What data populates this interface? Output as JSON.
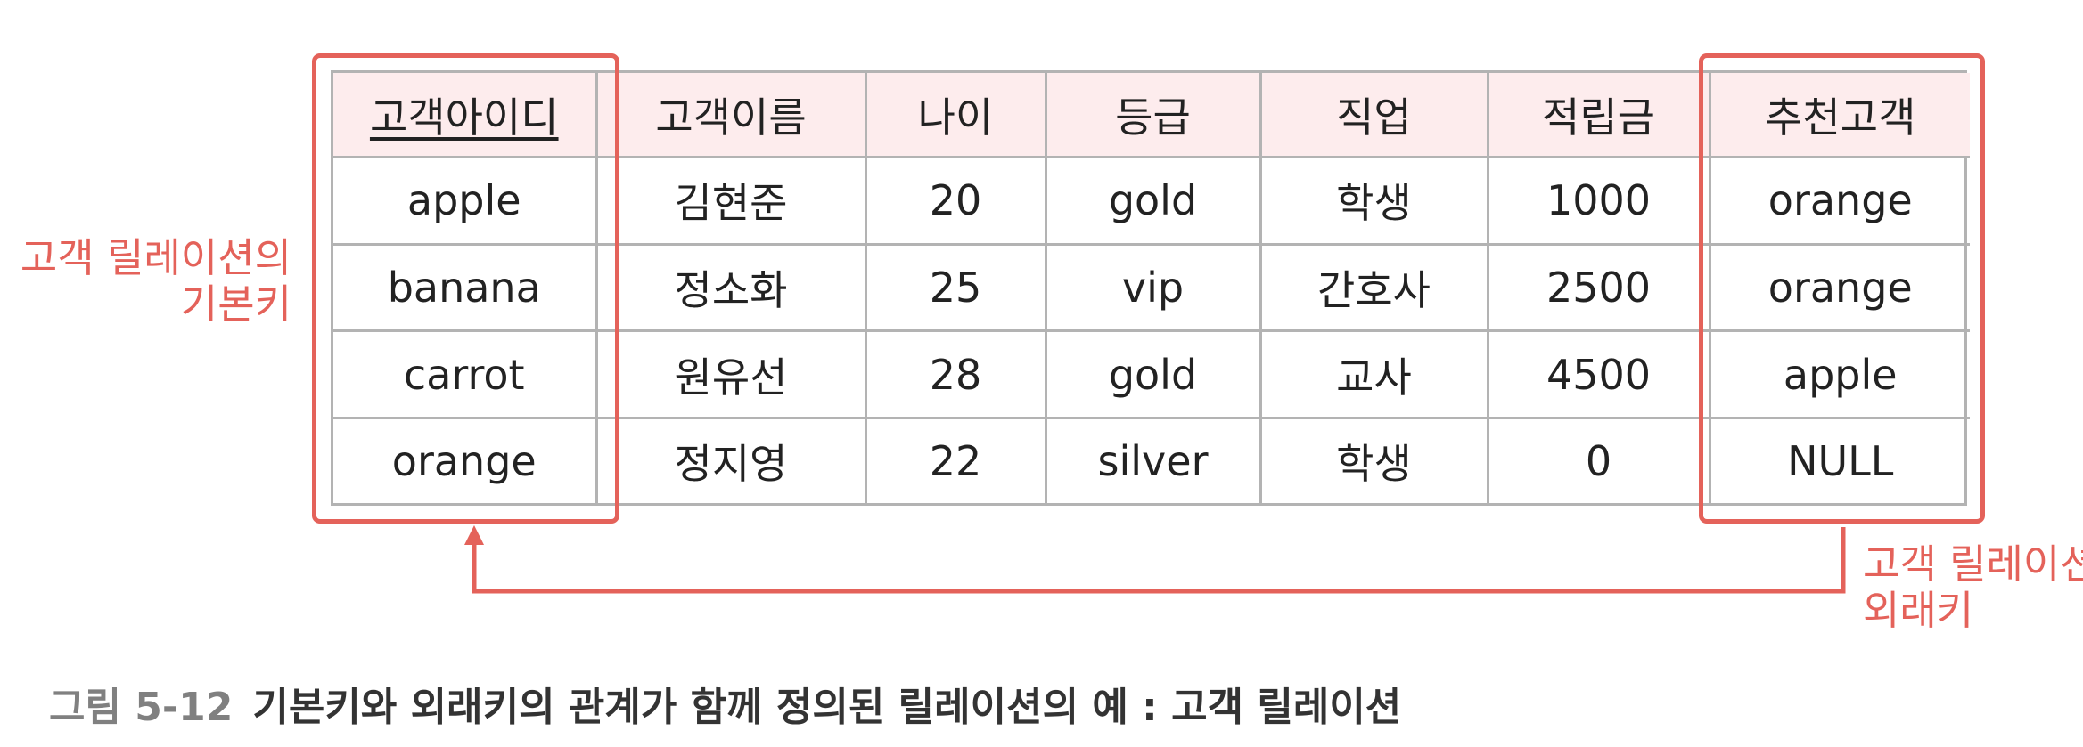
{
  "table": {
    "headers": [
      "고객아이디",
      "고객이름",
      "나이",
      "등급",
      "직업",
      "적립금",
      "추천고객"
    ],
    "rows": [
      [
        "apple",
        "김현준",
        "20",
        "gold",
        "학생",
        "1000",
        "orange"
      ],
      [
        "banana",
        "정소화",
        "25",
        "vip",
        "간호사",
        "2500",
        "orange"
      ],
      [
        "carrot",
        "원유선",
        "28",
        "gold",
        "교사",
        "4500",
        "apple"
      ],
      [
        "orange",
        "정지영",
        "22",
        "silver",
        "학생",
        "0",
        "NULL"
      ]
    ]
  },
  "annotations": {
    "pk_label_line1": "고객 릴레이션의",
    "pk_label_line2": "기본키",
    "fk_label_line1": "고객 릴레이션의",
    "fk_label_line2": "외래키"
  },
  "caption": {
    "figure_number": "그림 5-12",
    "text": "기본키와 외래키의 관계가 함께 정의된 릴레이션의 예 : 고객 릴레이션"
  },
  "colors": {
    "highlight": "#e4625a",
    "header_bg": "#fdeced",
    "grid": "#b3b3b3"
  }
}
